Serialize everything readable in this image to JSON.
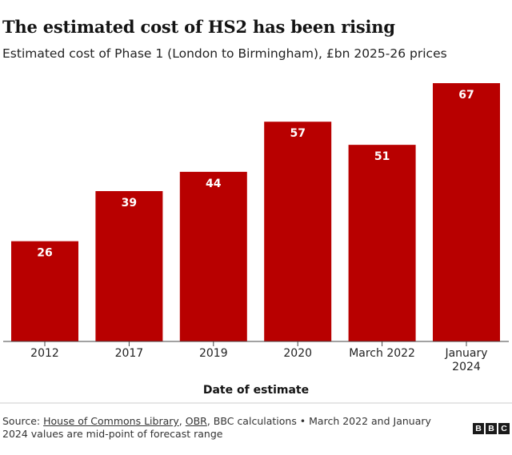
{
  "chart_data": {
    "type": "bar",
    "title": "The estimated cost of HS2 has been rising",
    "subtitle": "Estimated cost of Phase 1 (London to Birmingham), £bn 2025-26 prices",
    "categories": [
      "2012",
      "2017",
      "2019",
      "2020",
      "March 2022",
      "January 2024"
    ],
    "values": [
      26,
      39,
      44,
      57,
      51,
      67
    ],
    "xlabel": "Date of estimate",
    "ylabel": "",
    "ylim": [
      0,
      67
    ],
    "bar_color": "#b80000",
    "label_color": "#ffffff",
    "grid": false
  },
  "source": {
    "prefix": "Source: ",
    "link1": "House of Commons Library",
    "sep1": ", ",
    "link2": "OBR",
    "rest": ", BBC calculations • March 2022 and January 2024 values are mid-point of forecast range"
  },
  "logo": {
    "letters": [
      "B",
      "B",
      "C"
    ]
  }
}
